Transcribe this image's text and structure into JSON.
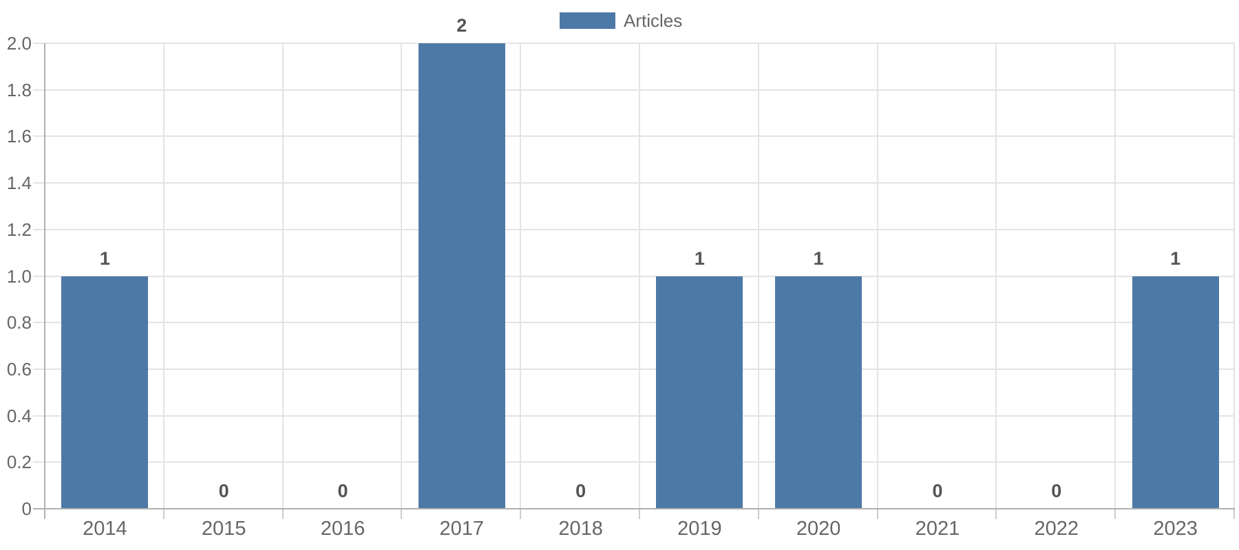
{
  "chart_data": {
    "type": "bar",
    "categories": [
      "2014",
      "2015",
      "2016",
      "2017",
      "2018",
      "2019",
      "2020",
      "2021",
      "2022",
      "2023"
    ],
    "series": [
      {
        "name": "Articles",
        "color": "#4d79a7",
        "values": [
          1,
          0,
          0,
          2,
          0,
          1,
          1,
          0,
          0,
          1
        ]
      }
    ],
    "data_labels": [
      "1",
      "0",
      "0",
      "2",
      "0",
      "1",
      "1",
      "0",
      "0",
      "1"
    ],
    "ylim": [
      0,
      2
    ],
    "y_tick_step": 0.2,
    "y_tick_labels": [
      "0",
      "0.2",
      "0.4",
      "0.6",
      "0.8",
      "1.0",
      "1.2",
      "1.4",
      "1.6",
      "1.8",
      "2.0"
    ],
    "grid": true,
    "legend": {
      "position": "top-center",
      "items": [
        "Articles"
      ]
    },
    "style": {
      "bar_color": "#4d79a7",
      "grid_color": "#e3e3e3",
      "axis_color": "#b0b0b0",
      "x_tick_color": "#cccccc",
      "axis_label_color": "#666666",
      "data_label_color": "#545454",
      "background": "#ffffff"
    }
  }
}
